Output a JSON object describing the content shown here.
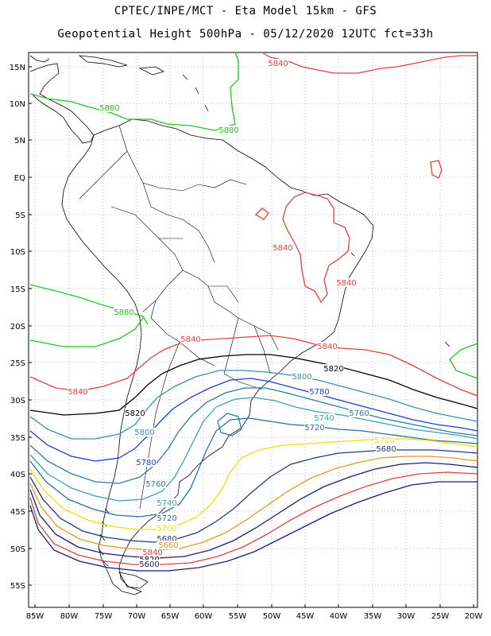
{
  "title_line1": "CPTEC/INPE/MCT -  Eta Model 15km - GFS",
  "title_line2": "Geopotential Height 500hPa - 05/12/2020 12UTC fct=33h",
  "lat_labels": [
    "15N",
    "10N",
    "5N",
    "EQ",
    "5S",
    "10S",
    "15S",
    "20S",
    "25S",
    "30S",
    "35S",
    "40S",
    "45S",
    "50S",
    "55S"
  ],
  "lon_labels": [
    "85W",
    "80W",
    "75W",
    "70W",
    "65W",
    "60W",
    "55W",
    "50W",
    "45W",
    "40W",
    "35W",
    "30W",
    "25W",
    "20W"
  ],
  "contour_colors": {
    "5880": "#1ec81e",
    "5840": "#e8403c",
    "5820": "#000000",
    "5800": "#3a8fb0",
    "5780": "#1e3cdc",
    "5760": "#2c7aa8",
    "5740": "#3aa0b8",
    "5720": "#2a6ea0",
    "5700": "#f0e000",
    "5680": "#1e3c88",
    "5660": "#e09a20",
    "5600": "#1a1a80"
  },
  "contour_labels": [
    {
      "text": "5840",
      "color": "5840"
    },
    {
      "text": "5880",
      "color": "5880"
    },
    {
      "text": "5880",
      "color": "5880"
    },
    {
      "text": "5840",
      "color": "5840"
    },
    {
      "text": "5840",
      "color": "5840"
    },
    {
      "text": "5880",
      "color": "5880"
    },
    {
      "text": "5840",
      "color": "5840"
    },
    {
      "text": "5840",
      "color": "5840"
    },
    {
      "text": "5820",
      "color": "5820"
    },
    {
      "text": "5840",
      "color": "5840"
    },
    {
      "text": "5800",
      "color": "5800"
    },
    {
      "text": "5780",
      "color": "5780"
    },
    {
      "text": "5820",
      "color": "5820"
    },
    {
      "text": "5760",
      "color": "5760"
    },
    {
      "text": "5740",
      "color": "5740"
    },
    {
      "text": "5720",
      "color": "5720"
    },
    {
      "text": "5800",
      "color": "5800"
    },
    {
      "text": "5700",
      "color": "5700"
    },
    {
      "text": "5680",
      "color": "5680"
    },
    {
      "text": "5780",
      "color": "5780"
    },
    {
      "text": "5760",
      "color": "5760"
    },
    {
      "text": "5740",
      "color": "5740"
    },
    {
      "text": "5720",
      "color": "5720"
    },
    {
      "text": "5700",
      "color": "5700"
    },
    {
      "text": "5680",
      "color": "5680"
    },
    {
      "text": "5660",
      "color": "5660"
    },
    {
      "text": "5840",
      "color": "5840"
    },
    {
      "text": "5820",
      "color": "5820"
    },
    {
      "text": "5600",
      "color": "5600"
    }
  ]
}
